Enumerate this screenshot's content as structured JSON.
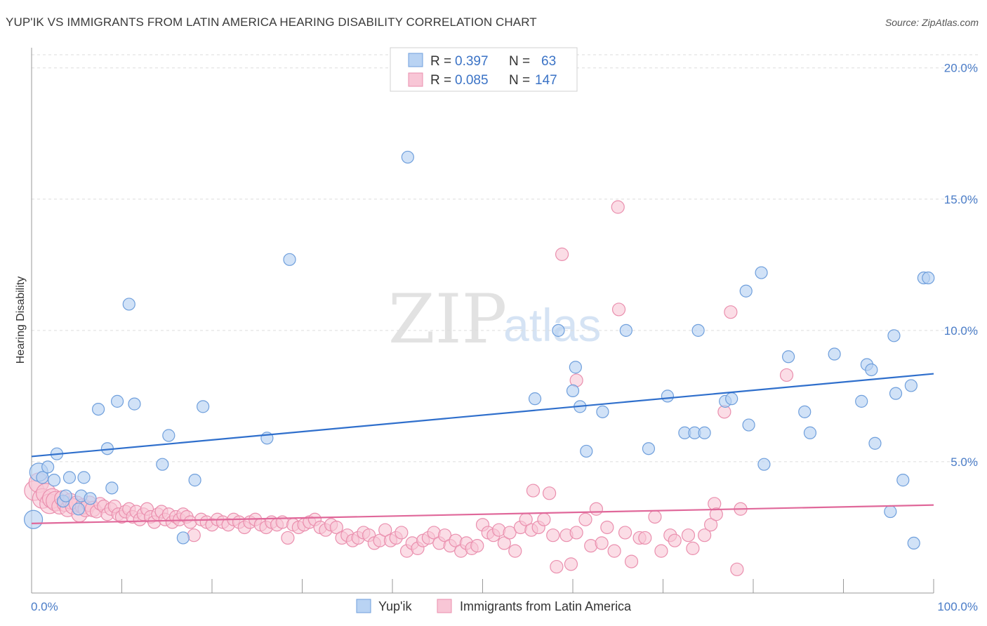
{
  "header": {
    "title": "YUP'IK VS IMMIGRANTS FROM LATIN AMERICA HEARING DISABILITY CORRELATION CHART",
    "source": "Source: ZipAtlas.com"
  },
  "watermark": {
    "zip": "ZIP",
    "atlas": "atlas"
  },
  "colors": {
    "series1_fill": "#b9d3f3",
    "series1_stroke": "#6f9fdc",
    "series1_line": "#2f6fcc",
    "series2_fill": "#f8c6d6",
    "series2_stroke": "#ea8fae",
    "series2_line": "#e0689a",
    "tick_text": "#4a7cc7"
  },
  "legend": {
    "rows": [
      {
        "r_label": "R =",
        "r_value": "0.397",
        "n_label": "N =",
        "n_value": "63"
      },
      {
        "r_label": "R =",
        "r_value": "0.085",
        "n_label": "N =",
        "n_value": "147"
      }
    ]
  },
  "bottom_legend": {
    "items": [
      "Yup'ik",
      "Immigrants from Latin America"
    ]
  },
  "chart_data": {
    "type": "scatter",
    "xlabel": "",
    "ylabel": "Hearing Disability",
    "xlim": [
      0,
      100
    ],
    "ylim": [
      0,
      20.5
    ],
    "x_tick_labels": [
      "0.0%",
      "100.0%"
    ],
    "y_ticks": [
      5,
      10,
      15,
      20
    ],
    "y_tick_labels": [
      "5.0%",
      "10.0%",
      "15.0%",
      "20.0%"
    ],
    "grid": true,
    "legend_position": "top-center",
    "series": [
      {
        "name": "Yup'ik",
        "trend": {
          "x": [
            0,
            100
          ],
          "y": [
            5.2,
            8.35
          ]
        },
        "points": [
          [
            0.2,
            2.8
          ],
          [
            0.8,
            4.6
          ],
          [
            1.2,
            4.4
          ],
          [
            1.8,
            4.8
          ],
          [
            2.5,
            4.3
          ],
          [
            2.8,
            5.3
          ],
          [
            3.5,
            3.5
          ],
          [
            3.8,
            3.7
          ],
          [
            4.2,
            4.4
          ],
          [
            5.2,
            3.2
          ],
          [
            5.5,
            3.7
          ],
          [
            5.8,
            4.4
          ],
          [
            6.5,
            3.6
          ],
          [
            7.4,
            7.0
          ],
          [
            8.4,
            5.5
          ],
          [
            8.9,
            4.0
          ],
          [
            9.5,
            7.3
          ],
          [
            10.8,
            11.0
          ],
          [
            11.4,
            7.2
          ],
          [
            14.5,
            4.9
          ],
          [
            15.2,
            6.0
          ],
          [
            16.8,
            2.1
          ],
          [
            18.1,
            4.3
          ],
          [
            19.0,
            7.1
          ],
          [
            26.1,
            5.9
          ],
          [
            28.6,
            12.7
          ],
          [
            41.7,
            16.6
          ],
          [
            55.8,
            7.4
          ],
          [
            58.4,
            10.0
          ],
          [
            60.0,
            7.7
          ],
          [
            60.3,
            8.6
          ],
          [
            60.8,
            7.1
          ],
          [
            61.5,
            5.4
          ],
          [
            63.3,
            6.9
          ],
          [
            65.9,
            10.0
          ],
          [
            68.4,
            5.5
          ],
          [
            70.5,
            7.5
          ],
          [
            72.4,
            6.1
          ],
          [
            73.5,
            6.1
          ],
          [
            73.9,
            10.0
          ],
          [
            74.6,
            6.1
          ],
          [
            76.9,
            7.3
          ],
          [
            77.6,
            7.4
          ],
          [
            79.2,
            11.5
          ],
          [
            79.5,
            6.4
          ],
          [
            80.9,
            12.2
          ],
          [
            81.2,
            4.9
          ],
          [
            83.9,
            9.0
          ],
          [
            85.7,
            6.9
          ],
          [
            86.3,
            6.1
          ],
          [
            89.0,
            9.1
          ],
          [
            92.0,
            7.3
          ],
          [
            92.6,
            8.7
          ],
          [
            93.1,
            8.5
          ],
          [
            93.5,
            5.7
          ],
          [
            95.2,
            3.1
          ],
          [
            95.6,
            9.8
          ],
          [
            95.8,
            7.6
          ],
          [
            96.6,
            4.3
          ],
          [
            97.5,
            7.9
          ],
          [
            97.8,
            1.9
          ],
          [
            98.9,
            12.0
          ],
          [
            99.4,
            12.0
          ]
        ]
      },
      {
        "name": "Immigrants from Latin America",
        "trend": {
          "x": [
            0,
            100
          ],
          "y": [
            2.65,
            3.35
          ]
        },
        "points": [
          [
            0.3,
            3.9
          ],
          [
            0.8,
            4.2
          ],
          [
            1.2,
            3.6
          ],
          [
            1.6,
            3.8
          ],
          [
            2.0,
            3.4
          ],
          [
            2.3,
            3.6
          ],
          [
            2.7,
            3.5
          ],
          [
            3.1,
            3.3
          ],
          [
            3.4,
            3.6
          ],
          [
            3.7,
            3.4
          ],
          [
            4.0,
            3.2
          ],
          [
            4.3,
            3.5
          ],
          [
            4.6,
            3.3
          ],
          [
            5.0,
            3.4
          ],
          [
            5.3,
            3.0
          ],
          [
            5.7,
            3.3
          ],
          [
            6.0,
            3.2
          ],
          [
            6.4,
            3.4
          ],
          [
            6.8,
            3.2
          ],
          [
            7.2,
            3.1
          ],
          [
            7.6,
            3.4
          ],
          [
            8.0,
            3.3
          ],
          [
            8.4,
            3.0
          ],
          [
            8.8,
            3.2
          ],
          [
            9.2,
            3.3
          ],
          [
            9.6,
            3.0
          ],
          [
            10.0,
            2.9
          ],
          [
            10.4,
            3.1
          ],
          [
            10.8,
            3.2
          ],
          [
            11.2,
            2.9
          ],
          [
            11.6,
            3.1
          ],
          [
            12.0,
            2.8
          ],
          [
            12.4,
            3.0
          ],
          [
            12.8,
            3.2
          ],
          [
            13.2,
            2.9
          ],
          [
            13.6,
            2.7
          ],
          [
            14.0,
            3.0
          ],
          [
            14.4,
            3.1
          ],
          [
            14.8,
            2.8
          ],
          [
            15.2,
            3.0
          ],
          [
            15.6,
            2.7
          ],
          [
            16.0,
            2.9
          ],
          [
            16.4,
            2.8
          ],
          [
            16.8,
            3.0
          ],
          [
            17.2,
            2.9
          ],
          [
            17.6,
            2.7
          ],
          [
            18.0,
            2.2
          ],
          [
            18.8,
            2.8
          ],
          [
            19.4,
            2.7
          ],
          [
            20.0,
            2.6
          ],
          [
            20.6,
            2.8
          ],
          [
            21.2,
            2.7
          ],
          [
            21.8,
            2.6
          ],
          [
            22.4,
            2.8
          ],
          [
            23.0,
            2.7
          ],
          [
            23.6,
            2.5
          ],
          [
            24.2,
            2.7
          ],
          [
            24.8,
            2.8
          ],
          [
            25.4,
            2.6
          ],
          [
            26.0,
            2.5
          ],
          [
            26.6,
            2.7
          ],
          [
            27.2,
            2.6
          ],
          [
            27.8,
            2.7
          ],
          [
            28.4,
            2.1
          ],
          [
            29.0,
            2.6
          ],
          [
            29.6,
            2.5
          ],
          [
            30.2,
            2.6
          ],
          [
            30.8,
            2.7
          ],
          [
            31.4,
            2.8
          ],
          [
            32.0,
            2.5
          ],
          [
            32.6,
            2.4
          ],
          [
            33.2,
            2.6
          ],
          [
            33.8,
            2.5
          ],
          [
            34.4,
            2.1
          ],
          [
            35.0,
            2.2
          ],
          [
            35.6,
            2.0
          ],
          [
            36.2,
            2.1
          ],
          [
            36.8,
            2.3
          ],
          [
            37.4,
            2.2
          ],
          [
            38.0,
            1.9
          ],
          [
            38.6,
            2.0
          ],
          [
            39.2,
            2.4
          ],
          [
            39.8,
            2.0
          ],
          [
            40.4,
            2.1
          ],
          [
            41.0,
            2.3
          ],
          [
            41.6,
            1.6
          ],
          [
            42.2,
            1.9
          ],
          [
            42.8,
            1.7
          ],
          [
            43.4,
            2.0
          ],
          [
            44.0,
            2.1
          ],
          [
            44.6,
            2.3
          ],
          [
            45.2,
            1.9
          ],
          [
            45.8,
            2.2
          ],
          [
            46.4,
            1.8
          ],
          [
            47.0,
            2.0
          ],
          [
            47.6,
            1.6
          ],
          [
            48.2,
            1.9
          ],
          [
            48.8,
            1.7
          ],
          [
            49.4,
            1.8
          ],
          [
            50.0,
            2.6
          ],
          [
            50.6,
            2.3
          ],
          [
            51.2,
            2.2
          ],
          [
            51.8,
            2.4
          ],
          [
            52.4,
            1.9
          ],
          [
            53.0,
            2.3
          ],
          [
            53.6,
            1.6
          ],
          [
            54.2,
            2.5
          ],
          [
            54.8,
            2.8
          ],
          [
            55.4,
            2.4
          ],
          [
            55.6,
            3.9
          ],
          [
            56.2,
            2.5
          ],
          [
            56.8,
            2.8
          ],
          [
            57.4,
            3.8
          ],
          [
            57.8,
            2.2
          ],
          [
            58.2,
            1.0
          ],
          [
            58.8,
            12.9
          ],
          [
            59.3,
            2.2
          ],
          [
            59.8,
            1.1
          ],
          [
            60.4,
            2.3
          ],
          [
            60.4,
            8.1
          ],
          [
            61.4,
            2.8
          ],
          [
            62.0,
            1.8
          ],
          [
            62.6,
            3.2
          ],
          [
            63.2,
            1.9
          ],
          [
            63.8,
            2.5
          ],
          [
            64.6,
            1.6
          ],
          [
            65.0,
            14.7
          ],
          [
            65.1,
            10.8
          ],
          [
            65.8,
            2.3
          ],
          [
            66.5,
            1.2
          ],
          [
            67.4,
            2.1
          ],
          [
            68.0,
            2.1
          ],
          [
            69.1,
            2.9
          ],
          [
            69.8,
            1.6
          ],
          [
            70.8,
            2.2
          ],
          [
            71.3,
            2.0
          ],
          [
            72.8,
            2.2
          ],
          [
            73.3,
            1.7
          ],
          [
            74.6,
            2.2
          ],
          [
            75.3,
            2.6
          ],
          [
            75.7,
            3.4
          ],
          [
            75.9,
            3.0
          ],
          [
            76.8,
            6.9
          ],
          [
            77.5,
            10.7
          ],
          [
            78.2,
            0.9
          ],
          [
            78.6,
            3.2
          ],
          [
            83.7,
            8.3
          ]
        ]
      }
    ]
  }
}
